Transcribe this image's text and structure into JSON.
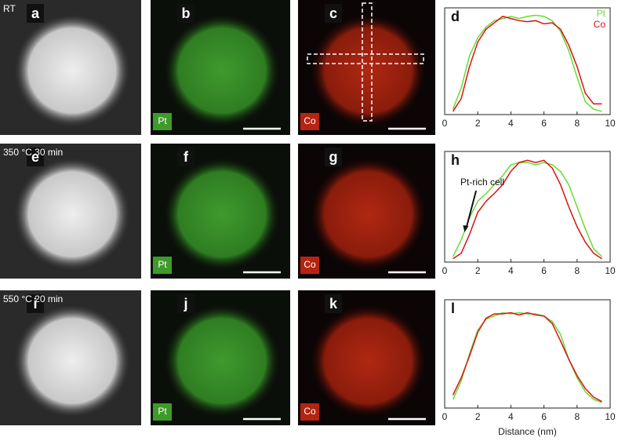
{
  "rows": [
    {
      "condition": "RT",
      "image_letters": [
        "a",
        "b",
        "c"
      ],
      "badges": [
        "Pt",
        "Co"
      ]
    },
    {
      "condition": "350 °C 30 min",
      "image_letters": [
        "e",
        "f",
        "g"
      ],
      "badges": [
        "Pt",
        "Co"
      ]
    },
    {
      "condition": "550 °C 20 min",
      "image_letters": [
        "i",
        "j",
        "k"
      ],
      "badges": [
        "Pt",
        "Co"
      ]
    }
  ],
  "chart_data": [
    {
      "type": "line",
      "label": "d",
      "x": [
        0.5,
        1,
        1.5,
        2,
        2.5,
        3,
        3.5,
        4,
        4.5,
        5,
        5.5,
        6,
        6.5,
        7,
        7.5,
        8,
        8.5,
        9,
        9.5
      ],
      "series": [
        {
          "name": "Pt",
          "color": "#66dd33",
          "values": [
            0.05,
            0.25,
            0.55,
            0.72,
            0.82,
            0.88,
            0.9,
            0.92,
            0.9,
            0.92,
            0.93,
            0.92,
            0.88,
            0.78,
            0.6,
            0.35,
            0.12,
            0.05,
            0.03
          ]
        },
        {
          "name": "Co",
          "color": "#dd1111",
          "values": [
            0.03,
            0.15,
            0.45,
            0.68,
            0.8,
            0.86,
            0.92,
            0.9,
            0.88,
            0.87,
            0.88,
            0.85,
            0.86,
            0.8,
            0.65,
            0.45,
            0.2,
            0.1,
            0.1
          ]
        }
      ],
      "xlim": [
        0,
        10
      ],
      "xticks": [
        0,
        2,
        4,
        6,
        8,
        10
      ],
      "ylim": [
        0,
        1
      ],
      "legend": "upper right"
    },
    {
      "type": "line",
      "label": "h",
      "annotation": "Pt-rich cell",
      "x": [
        0.5,
        1,
        1.5,
        2,
        2.5,
        3,
        3.5,
        4,
        4.5,
        5,
        5.5,
        6,
        6.5,
        7,
        7.5,
        8,
        8.5,
        9,
        9.5
      ],
      "series": [
        {
          "color": "#66dd33",
          "values": [
            0.05,
            0.2,
            0.4,
            0.55,
            0.62,
            0.7,
            0.78,
            0.88,
            0.9,
            0.9,
            0.88,
            0.9,
            0.88,
            0.82,
            0.7,
            0.5,
            0.3,
            0.12,
            0.05
          ]
        },
        {
          "color": "#dd1111",
          "values": [
            0.03,
            0.08,
            0.25,
            0.45,
            0.55,
            0.62,
            0.7,
            0.82,
            0.9,
            0.92,
            0.9,
            0.92,
            0.85,
            0.7,
            0.5,
            0.32,
            0.18,
            0.08,
            0.03
          ]
        }
      ],
      "xlim": [
        0,
        10
      ],
      "xticks": [
        0,
        2,
        4,
        6,
        8,
        10
      ],
      "ylim": [
        0,
        1
      ]
    },
    {
      "type": "line",
      "label": "l",
      "x_label": "Distance (nm)",
      "x": [
        0.5,
        1,
        1.5,
        2,
        2.5,
        3,
        3.5,
        4,
        4.5,
        5,
        5.5,
        6,
        6.5,
        7,
        7.5,
        8,
        8.5,
        9,
        9.5
      ],
      "series": [
        {
          "color": "#66dd33",
          "values": [
            0.08,
            0.25,
            0.5,
            0.72,
            0.82,
            0.85,
            0.88,
            0.87,
            0.88,
            0.87,
            0.87,
            0.85,
            0.8,
            0.68,
            0.45,
            0.28,
            0.15,
            0.08,
            0.05
          ]
        },
        {
          "color": "#dd1111",
          "values": [
            0.12,
            0.28,
            0.48,
            0.7,
            0.83,
            0.87,
            0.87,
            0.88,
            0.86,
            0.88,
            0.86,
            0.85,
            0.78,
            0.62,
            0.45,
            0.3,
            0.18,
            0.1,
            0.06
          ]
        }
      ],
      "xlim": [
        0,
        10
      ],
      "xticks": [
        0,
        2,
        4,
        6,
        8,
        10
      ],
      "ylim": [
        0,
        1
      ]
    }
  ]
}
